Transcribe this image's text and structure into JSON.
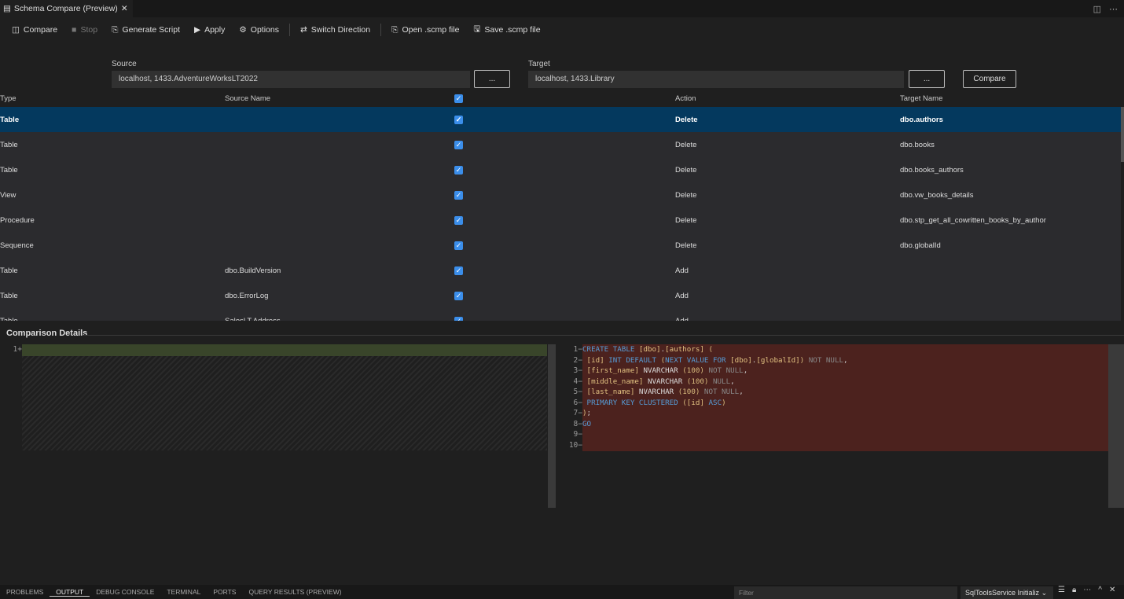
{
  "tab": {
    "title": "Schema Compare (Preview)",
    "close": "✕"
  },
  "toolbar": [
    {
      "label": "Compare",
      "icon": "compare-icon",
      "glyph": "◫",
      "disabled": false
    },
    {
      "label": "Stop",
      "icon": "stop-icon",
      "glyph": "■",
      "disabled": true
    },
    {
      "label": "Generate Script",
      "icon": "generate-script-icon",
      "glyph": "⎘",
      "disabled": false
    },
    {
      "label": "Apply",
      "icon": "play-icon",
      "glyph": "▶",
      "disabled": false
    },
    {
      "label": "Options",
      "icon": "gear-icon",
      "glyph": "⚙",
      "disabled": false
    },
    {
      "label": "Switch Direction",
      "icon": "switch-icon",
      "glyph": "⇄",
      "disabled": false
    },
    {
      "label": "Open .scmp file",
      "icon": "open-file-icon",
      "glyph": "⎘",
      "disabled": false
    },
    {
      "label": "Save .scmp file",
      "icon": "save-icon",
      "glyph": "🖫",
      "disabled": false
    }
  ],
  "source": {
    "label": "Source",
    "value": "localhost, 1433.AdventureWorksLT2022",
    "browse": "..."
  },
  "target": {
    "label": "Target",
    "value": "localhost, 1433.Library",
    "browse": "..."
  },
  "compare_button": "Compare",
  "columns": [
    "Type",
    "Source Name",
    "✓",
    "Action",
    "Target Name"
  ],
  "rows": [
    {
      "type": "Table",
      "source": "",
      "action": "Delete",
      "target": "dbo.authors",
      "selected": true
    },
    {
      "type": "Table",
      "source": "",
      "action": "Delete",
      "target": "dbo.books"
    },
    {
      "type": "Table",
      "source": "",
      "action": "Delete",
      "target": "dbo.books_authors"
    },
    {
      "type": "View",
      "source": "",
      "action": "Delete",
      "target": "dbo.vw_books_details"
    },
    {
      "type": "Procedure",
      "source": "",
      "action": "Delete",
      "target": "dbo.stp_get_all_cowritten_books_by_author"
    },
    {
      "type": "Sequence",
      "source": "",
      "action": "Delete",
      "target": "dbo.globalId"
    },
    {
      "type": "Table",
      "source": "dbo.BuildVersion",
      "action": "Add",
      "target": ""
    },
    {
      "type": "Table",
      "source": "dbo.ErrorLog",
      "action": "Add",
      "target": ""
    },
    {
      "type": "Table",
      "source": "SalesLT.Address",
      "action": "Add",
      "target": ""
    }
  ],
  "details": {
    "title": "Comparison Details",
    "left_lines": [
      "1+"
    ],
    "right_line_numbers": [
      "1−",
      "2−",
      "3−",
      "4−",
      "5−",
      "6−",
      "7−",
      "8−",
      "9−",
      "10−"
    ],
    "right_code": [
      [
        [
          "kw",
          "CREATE TABLE "
        ],
        [
          "br",
          "[dbo]"
        ],
        [
          "pu",
          "."
        ],
        [
          "br",
          "[authors]"
        ],
        [
          "pn",
          " ("
        ]
      ],
      [
        [
          "br",
          " [id]"
        ],
        [
          "kw",
          " INT DEFAULT "
        ],
        [
          "pn",
          "("
        ],
        [
          "kw",
          "NEXT VALUE FOR "
        ],
        [
          "br",
          "[dbo]"
        ],
        [
          "pu",
          "."
        ],
        [
          "br",
          "[globalId]"
        ],
        [
          "pn",
          ")"
        ],
        [
          "gr",
          " NOT NULL"
        ],
        [
          "pu",
          ","
        ]
      ],
      [
        [
          "br",
          " [first_name]"
        ],
        [
          "id",
          " NVARCHAR "
        ],
        [
          "pn",
          "(100)"
        ],
        [
          "gr",
          " NOT NULL"
        ],
        [
          "pu",
          ","
        ]
      ],
      [
        [
          "br",
          " [middle_name]"
        ],
        [
          "id",
          " NVARCHAR "
        ],
        [
          "pn",
          "(100)"
        ],
        [
          "gr",
          " NULL"
        ],
        [
          "pu",
          ","
        ]
      ],
      [
        [
          "br",
          " [last_name]"
        ],
        [
          "id",
          " NVARCHAR "
        ],
        [
          "pn",
          "(100)"
        ],
        [
          "gr",
          " NOT NULL"
        ],
        [
          "pu",
          ","
        ]
      ],
      [
        [
          "kw",
          " PRIMARY KEY CLUSTERED "
        ],
        [
          "pn",
          "("
        ],
        [
          "br",
          "[id]"
        ],
        [
          "kw",
          " ASC"
        ],
        [
          "pn",
          ")"
        ]
      ],
      [
        [
          "pn",
          ")"
        ],
        [
          "pu",
          ";"
        ]
      ],
      [
        [
          "kw",
          "GO"
        ]
      ],
      [],
      []
    ]
  },
  "panel": {
    "tabs": [
      "PROBLEMS",
      "OUTPUT",
      "DEBUG CONSOLE",
      "TERMINAL",
      "PORTS",
      "QUERY RESULTS (PREVIEW)"
    ],
    "active": "OUTPUT",
    "filter_placeholder": "Filter",
    "channel": "SqlToolsService Initializ"
  },
  "colors": {
    "selected_row": "#04395e",
    "deleted_bg": "#4c221e",
    "added_bg": "#39452a",
    "checkbox": "#3b8eea"
  }
}
